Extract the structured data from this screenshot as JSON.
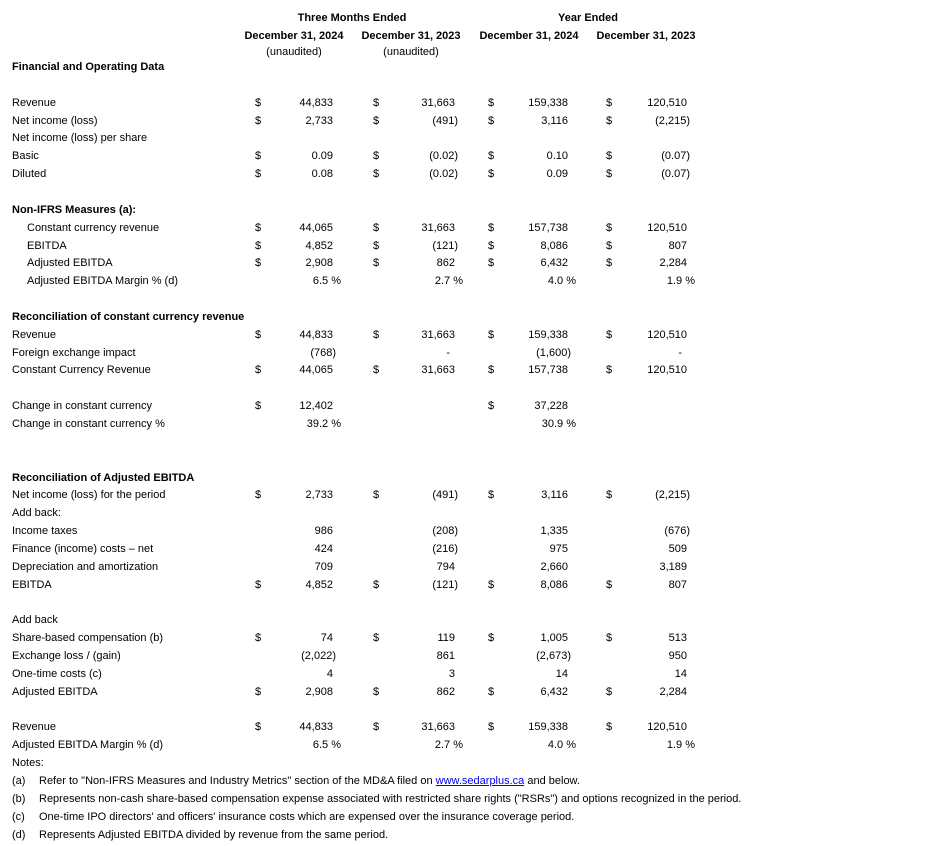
{
  "header": {
    "groups": [
      "Three Months Ended",
      "Year Ended"
    ],
    "columns": [
      "December 31, 2024",
      "December 31, 2023",
      "December 31, 2024",
      "December 31, 2023"
    ],
    "notes": [
      "(unaudited)",
      "(unaudited)"
    ]
  },
  "rows": [
    {
      "label": "Financial and Operating Data"
    },
    {
      "label": "Revenue",
      "cells": [
        {
          "currency": "$",
          "amount": "44,833"
        },
        {
          "currency": "$",
          "amount": "31,663"
        },
        {
          "currency": "$",
          "amount": "159,338"
        },
        {
          "currency": "$",
          "amount": "120,510"
        }
      ]
    },
    {
      "label": "Net income (loss)",
      "cells": [
        {
          "currency": "$",
          "amount": "2,733"
        },
        {
          "currency": "$",
          "amount": "(491)"
        },
        {
          "currency": "$",
          "amount": "3,116"
        },
        {
          "currency": "$",
          "amount": "(2,215)"
        }
      ]
    },
    {
      "label": "Net income (loss) per share"
    },
    {
      "label": "Basic",
      "cells": [
        {
          "currency": "$",
          "amount": "0.09"
        },
        {
          "currency": "$",
          "amount": "(0.02)"
        },
        {
          "currency": "$",
          "amount": "0.10"
        },
        {
          "currency": "$",
          "amount": "(0.07)"
        }
      ]
    },
    {
      "label": "Diluted",
      "cells": [
        {
          "currency": "$",
          "amount": "0.08"
        },
        {
          "currency": "$",
          "amount": "(0.02)"
        },
        {
          "currency": "$",
          "amount": "0.09"
        },
        {
          "currency": "$",
          "amount": "(0.07)"
        }
      ]
    },
    {
      "label": "Non-IFRS Measures (a):"
    },
    {
      "label": "Constant currency revenue",
      "cells": [
        {
          "currency": "$",
          "amount": "44,065"
        },
        {
          "currency": "$",
          "amount": "31,663"
        },
        {
          "currency": "$",
          "amount": "157,738"
        },
        {
          "currency": "$",
          "amount": "120,510"
        }
      ]
    },
    {
      "label": "EBITDA",
      "cells": [
        {
          "currency": "$",
          "amount": "4,852"
        },
        {
          "currency": "$",
          "amount": "(121)"
        },
        {
          "currency": "$",
          "amount": "8,086"
        },
        {
          "currency": "$",
          "amount": "807"
        }
      ]
    },
    {
      "label": "Adjusted EBITDA",
      "cells": [
        {
          "currency": "$",
          "amount": "2,908"
        },
        {
          "currency": "$",
          "amount": "862"
        },
        {
          "currency": "$",
          "amount": "6,432"
        },
        {
          "currency": "$",
          "amount": "2,284"
        }
      ]
    },
    {
      "label": "Adjusted EBITDA Margin % (d)",
      "cells": [
        {
          "amount": "6.5 %"
        },
        {
          "amount": "2.7 %"
        },
        {
          "amount": "4.0 %"
        },
        {
          "amount": "1.9 %"
        }
      ]
    },
    {
      "label": "Reconciliation of constant currency revenue"
    },
    {
      "label": "Revenue",
      "cells": [
        {
          "currency": "$",
          "amount": "44,833"
        },
        {
          "currency": "$",
          "amount": "31,663"
        },
        {
          "currency": "$",
          "amount": "159,338"
        },
        {
          "currency": "$",
          "amount": "120,510"
        }
      ]
    },
    {
      "label": "Foreign exchange impact",
      "cells": [
        {
          "amount": "(768)"
        },
        {
          "amount": "-"
        },
        {
          "amount": "(1,600)"
        },
        {
          "amount": "-"
        }
      ]
    },
    {
      "label": "Constant Currency Revenue",
      "cells": [
        {
          "currency": "$",
          "amount": "44,065"
        },
        {
          "currency": "$",
          "amount": "31,663"
        },
        {
          "currency": "$",
          "amount": "157,738"
        },
        {
          "currency": "$",
          "amount": "120,510"
        }
      ]
    },
    {
      "label": "Change in constant currency",
      "cells": [
        {
          "currency": "$",
          "amount": "12,402"
        },
        null,
        {
          "currency": "$",
          "amount": "37,228"
        },
        null
      ]
    },
    {
      "label": "Change in constant currency %",
      "cells": [
        {
          "amount": "39.2 %"
        },
        null,
        {
          "amount": "30.9 %"
        },
        null
      ]
    },
    {
      "label": "Reconciliation of Adjusted EBITDA"
    },
    {
      "label": "Net income (loss) for the period",
      "cells": [
        {
          "currency": "$",
          "amount": "2,733"
        },
        {
          "currency": "$",
          "amount": "(491)"
        },
        {
          "currency": "$",
          "amount": "3,116"
        },
        {
          "currency": "$",
          "amount": "(2,215)"
        }
      ]
    },
    {
      "label": "Add back:"
    },
    {
      "label": "Income taxes",
      "cells": [
        {
          "amount": "986"
        },
        {
          "amount": "(208)"
        },
        {
          "amount": "1,335"
        },
        {
          "amount": "(676)"
        }
      ]
    },
    {
      "label": "Finance (income) costs – net",
      "cells": [
        {
          "amount": "424"
        },
        {
          "amount": "(216)"
        },
        {
          "amount": "975"
        },
        {
          "amount": "509"
        }
      ]
    },
    {
      "label": "Depreciation and amortization",
      "cells": [
        {
          "amount": "709"
        },
        {
          "amount": "794"
        },
        {
          "amount": "2,660"
        },
        {
          "amount": "3,189"
        }
      ]
    },
    {
      "label": "EBITDA",
      "cells": [
        {
          "currency": "$",
          "amount": "4,852"
        },
        {
          "currency": "$",
          "amount": "(121)"
        },
        {
          "currency": "$",
          "amount": "8,086"
        },
        {
          "currency": "$",
          "amount": "807"
        }
      ]
    },
    {
      "label": "Add back"
    },
    {
      "label": "Share-based compensation (b)",
      "cells": [
        {
          "currency": "$",
          "amount": "74"
        },
        {
          "currency": "$",
          "amount": "119"
        },
        {
          "currency": "$",
          "amount": "1,005"
        },
        {
          "currency": "$",
          "amount": "513"
        }
      ]
    },
    {
      "label": "Exchange loss / (gain)",
      "cells": [
        {
          "amount": "(2,022)"
        },
        {
          "amount": "861"
        },
        {
          "amount": "(2,673)"
        },
        {
          "amount": "950"
        }
      ]
    },
    {
      "label": "One-time costs (c)",
      "cells": [
        {
          "amount": "4"
        },
        {
          "amount": "3"
        },
        {
          "amount": "14"
        },
        {
          "amount": "14"
        }
      ]
    },
    {
      "label": "Adjusted EBITDA",
      "cells": [
        {
          "currency": "$",
          "amount": "2,908"
        },
        {
          "currency": "$",
          "amount": "862"
        },
        {
          "currency": "$",
          "amount": "6,432"
        },
        {
          "currency": "$",
          "amount": "2,284"
        }
      ]
    },
    {
      "label": "Revenue",
      "cells": [
        {
          "currency": "$",
          "amount": "44,833"
        },
        {
          "currency": "$",
          "amount": "31,663"
        },
        {
          "currency": "$",
          "amount": "159,338"
        },
        {
          "currency": "$",
          "amount": "120,510"
        }
      ]
    },
    {
      "label": "Adjusted EBITDA Margin % (d)",
      "cells": [
        {
          "amount": "6.5 %"
        },
        {
          "amount": "2.7 %"
        },
        {
          "amount": "4.0 %"
        },
        {
          "amount": "1.9 %"
        }
      ]
    }
  ],
  "notes": {
    "title": "Notes:",
    "items": [
      {
        "marker": "(a)",
        "text": "Refer to \"Non-IFRS Measures and Industry Metrics\" section of the MD&A filed on ",
        "link": "www.sedarplus.ca",
        "text_after": " and below."
      },
      {
        "marker": "(b)",
        "text": "Represents non-cash share-based compensation expense associated with restricted share rights (\"RSRs\") and options recognized in the period."
      },
      {
        "marker": "(c)",
        "text": "One-time IPO directors' and officers' insurance costs which are expensed over the insurance coverage period."
      },
      {
        "marker": "(d)",
        "text": "Represents Adjusted EBITDA divided by revenue from the same period."
      }
    ]
  }
}
